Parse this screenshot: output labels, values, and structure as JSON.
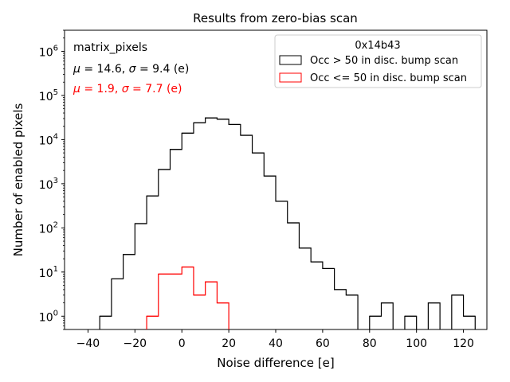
{
  "chart_data": {
    "type": "histogram-step",
    "title": "Results from zero-bias scan",
    "xlabel": "Noise difference [e]",
    "ylabel": "Number of enabled pixels",
    "xlim": [
      -50,
      130
    ],
    "ylim": [
      0.5,
      3000000
    ],
    "yscale": "log",
    "xticks": [
      -40,
      -20,
      0,
      20,
      40,
      60,
      80,
      100,
      120
    ],
    "yticks": [
      1,
      10,
      100,
      1000,
      10000,
      100000,
      1000000
    ],
    "xtick_labels": [
      "−40",
      "−20",
      "0",
      "20",
      "40",
      "60",
      "80",
      "100",
      "120"
    ],
    "ytick_labels": [
      {
        "base": "10",
        "exp": "0"
      },
      {
        "base": "10",
        "exp": "1"
      },
      {
        "base": "10",
        "exp": "2"
      },
      {
        "base": "10",
        "exp": "3"
      },
      {
        "base": "10",
        "exp": "4"
      },
      {
        "base": "10",
        "exp": "5"
      },
      {
        "base": "10",
        "exp": "6"
      }
    ],
    "bin_width": 5,
    "series": [
      {
        "name": "Occ > 50 in disc. bump scan",
        "color": "#000000",
        "bins": [
          {
            "x": -35,
            "y": 1
          },
          {
            "x": -30,
            "y": 7
          },
          {
            "x": -25,
            "y": 25
          },
          {
            "x": -20,
            "y": 125
          },
          {
            "x": -15,
            "y": 530
          },
          {
            "x": -10,
            "y": 2100
          },
          {
            "x": -5,
            "y": 6000
          },
          {
            "x": 0,
            "y": 14000
          },
          {
            "x": 5,
            "y": 24000
          },
          {
            "x": 10,
            "y": 31000
          },
          {
            "x": 15,
            "y": 29000
          },
          {
            "x": 20,
            "y": 22000
          },
          {
            "x": 25,
            "y": 12500
          },
          {
            "x": 30,
            "y": 5000
          },
          {
            "x": 35,
            "y": 1500
          },
          {
            "x": 40,
            "y": 400
          },
          {
            "x": 45,
            "y": 130
          },
          {
            "x": 50,
            "y": 35
          },
          {
            "x": 55,
            "y": 17
          },
          {
            "x": 60,
            "y": 12
          },
          {
            "x": 65,
            "y": 4
          },
          {
            "x": 70,
            "y": 3
          },
          {
            "x": 80,
            "y": 1
          },
          {
            "x": 85,
            "y": 2
          },
          {
            "x": 95,
            "y": 1
          },
          {
            "x": 105,
            "y": 2
          },
          {
            "x": 115,
            "y": 3
          },
          {
            "x": 120,
            "y": 1
          }
        ]
      },
      {
        "name": "Occ <= 50 in disc. bump scan",
        "color": "#ff0000",
        "bins": [
          {
            "x": -15,
            "y": 1
          },
          {
            "x": -10,
            "y": 9
          },
          {
            "x": -5,
            "y": 9
          },
          {
            "x": 0,
            "y": 13
          },
          {
            "x": 5,
            "y": 3
          },
          {
            "x": 10,
            "y": 6
          },
          {
            "x": 15,
            "y": 2
          }
        ]
      }
    ],
    "legend": {
      "title": "0x14b43",
      "placement": "top-right",
      "entries": [
        "Occ > 50 in disc. bump scan",
        "Occ <= 50 in disc. bump scan"
      ]
    },
    "annotations": {
      "label": "matrix_pixels",
      "stats_black": {
        "prefix_mu": "μ",
        "mu_text": " = 14.6, ",
        "prefix_sigma": "σ",
        "sigma_text": " = 9.4 (e)",
        "color": "#000000"
      },
      "stats_red": {
        "prefix_mu": "μ",
        "mu_text": " = 1.9, ",
        "prefix_sigma": "σ",
        "sigma_text": " = 7.7 (e)",
        "color": "#ff0000"
      }
    }
  }
}
